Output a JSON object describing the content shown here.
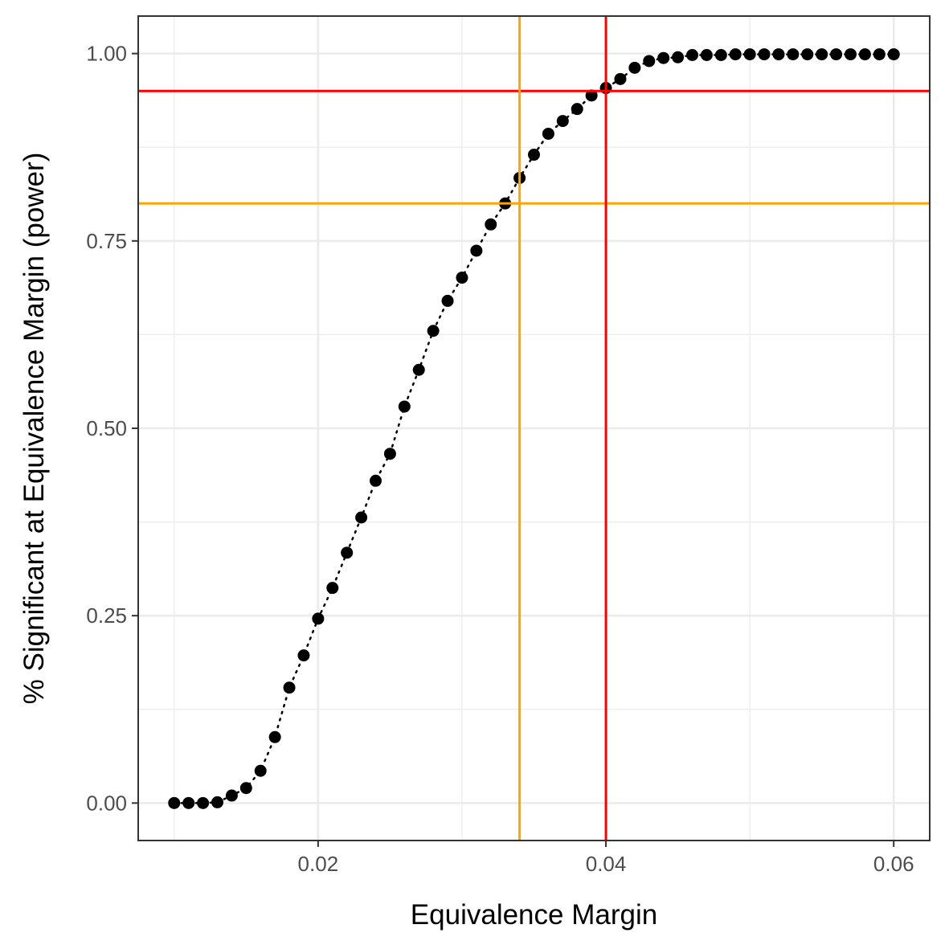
{
  "chart_data": {
    "type": "scatter",
    "xlabel": "Equivalence Margin",
    "ylabel": "% Significant at Equivalence Margin (power)",
    "xlim": [
      0.0075,
      0.0625
    ],
    "ylim": [
      -0.05,
      1.05
    ],
    "x_ticks": [
      {
        "value": 0.02,
        "label": "0.02"
      },
      {
        "value": 0.04,
        "label": "0.04"
      },
      {
        "value": 0.06,
        "label": "0.06"
      }
    ],
    "y_ticks": [
      {
        "value": 0.0,
        "label": "0.00"
      },
      {
        "value": 0.25,
        "label": "0.25"
      },
      {
        "value": 0.5,
        "label": "0.50"
      },
      {
        "value": 0.75,
        "label": "0.75"
      },
      {
        "value": 1.0,
        "label": "1.00"
      }
    ],
    "x_minor_ticks": [
      0.01,
      0.03,
      0.05
    ],
    "y_minor_ticks": [
      0.125,
      0.375,
      0.625,
      0.875
    ],
    "grid": true,
    "connector": "dotted",
    "x": [
      0.01,
      0.011,
      0.012,
      0.013,
      0.014,
      0.015,
      0.016,
      0.017,
      0.018,
      0.019,
      0.02,
      0.021,
      0.022,
      0.023,
      0.024,
      0.025,
      0.026,
      0.027,
      0.028,
      0.029,
      0.03,
      0.031,
      0.032,
      0.033,
      0.034,
      0.035,
      0.036,
      0.037,
      0.038,
      0.039,
      0.04,
      0.041,
      0.042,
      0.043,
      0.044,
      0.045,
      0.046,
      0.047,
      0.048,
      0.049,
      0.05,
      0.051,
      0.052,
      0.053,
      0.054,
      0.055,
      0.056,
      0.057,
      0.058,
      0.059,
      0.06
    ],
    "y": [
      0.0,
      0.0,
      0.0,
      0.001,
      0.01,
      0.02,
      0.043,
      0.088,
      0.154,
      0.197,
      0.246,
      0.287,
      0.334,
      0.381,
      0.43,
      0.466,
      0.529,
      0.578,
      0.63,
      0.67,
      0.701,
      0.737,
      0.772,
      0.8,
      0.834,
      0.865,
      0.893,
      0.91,
      0.926,
      0.944,
      0.954,
      0.966,
      0.981,
      0.99,
      0.994,
      0.995,
      0.998,
      0.998,
      0.998,
      0.999,
      0.999,
      0.999,
      0.999,
      0.999,
      0.999,
      0.999,
      0.999,
      0.999,
      0.999,
      0.999,
      0.999
    ],
    "hlines": [
      {
        "y": 0.95,
        "color": "#ff0000"
      },
      {
        "y": 0.8,
        "color": "#ffa500"
      }
    ],
    "vlines": [
      {
        "x": 0.034,
        "color": "#ffa500"
      },
      {
        "x": 0.04,
        "color": "#ff0000"
      }
    ],
    "point_color": "#000000",
    "panel_border_color": "#333333",
    "grid_color": "#ebebeb"
  }
}
